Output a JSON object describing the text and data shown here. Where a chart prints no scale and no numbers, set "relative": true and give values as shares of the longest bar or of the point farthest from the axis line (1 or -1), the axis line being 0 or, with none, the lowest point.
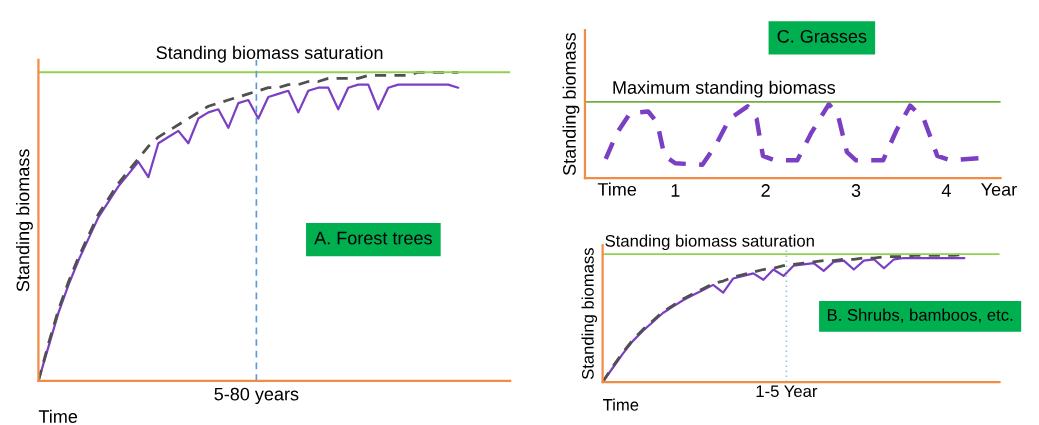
{
  "chart_data": [
    {
      "type": "line",
      "relative": true,
      "xlabel": "Time",
      "ylabel": "Standing biomass",
      "categories": [
        null,
        null,
        null,
        null,
        null,
        null,
        null,
        null,
        null,
        null,
        null,
        null,
        null,
        null,
        null,
        null,
        null,
        null,
        null,
        null,
        null,
        null,
        null,
        null,
        null,
        null,
        null,
        null,
        null,
        null,
        null,
        null,
        null,
        null,
        null,
        null,
        null,
        null,
        null,
        null,
        null,
        null,
        null
      ],
      "series": [
        {
          "color": "#7b3fc4",
          "line_style": "solid",
          "values": [
            0,
            0.11,
            0.22,
            0.31,
            0.39,
            0.46,
            0.53,
            0.58,
            0.63,
            0.67,
            0.71,
            0.66,
            0.77,
            0.79,
            0.81,
            0.77,
            0.85,
            0.87,
            0.88,
            0.82,
            0.9,
            0.91,
            0.85,
            0.92,
            0.93,
            0.94,
            0.87,
            0.94,
            0.95,
            0.95,
            0.88,
            0.95,
            0.96,
            0.96,
            0.88,
            0.95,
            0.96,
            0.96,
            0.96,
            0.96,
            0.96,
            0.96,
            0.95
          ]
        },
        {
          "color": "#505050",
          "line_style": "dashed",
          "values": [
            0,
            0.12,
            0.23,
            0.32,
            0.4,
            0.47,
            0.54,
            0.59,
            0.64,
            0.68,
            0.72,
            0.76,
            0.79,
            0.81,
            0.83,
            0.85,
            0.87,
            0.89,
            0.9,
            0.91,
            0.92,
            0.93,
            0.94,
            0.95,
            0.95,
            0.96,
            0.96,
            0.97,
            0.97,
            0.98,
            0.98,
            0.98,
            0.98,
            0.99,
            0.99,
            0.99,
            0.99,
            0.99,
            1.0,
            1.0,
            1.0,
            1.0,
            1.0
          ]
        }
      ],
      "ref_lines": [
        {
          "axis": "y",
          "value": 1.0,
          "label": "Standing biomass saturation",
          "color": "#92d050",
          "line_style": "solid"
        }
      ],
      "annotations": [
        "A. Forest trees",
        "5-80 years"
      ]
    },
    {
      "type": "line",
      "relative": true,
      "title": "C. Grasses",
      "xlabel": "Year",
      "ylabel": "Standing biomass",
      "xlim": [
        0,
        4.6
      ],
      "xticks": [
        1,
        2,
        3,
        4
      ],
      "series": [
        {
          "color": "#7b3fc4",
          "line_style": "dashed",
          "x": [
            0.23,
            0.35,
            0.5,
            0.7,
            0.8,
            0.88,
            1.0,
            1.3,
            1.45,
            1.6,
            1.8,
            1.9,
            1.97,
            2.1,
            2.35,
            2.5,
            2.7,
            2.8,
            2.9,
            3.0,
            3.3,
            3.45,
            3.6,
            3.75,
            3.9,
            4.05,
            4.37
          ],
          "values": [
            0.26,
            0.6,
            0.88,
            0.9,
            0.75,
            0.3,
            0.2,
            0.18,
            0.45,
            0.8,
            0.97,
            0.8,
            0.3,
            0.24,
            0.24,
            0.6,
            1.0,
            0.85,
            0.35,
            0.24,
            0.24,
            0.65,
            0.98,
            0.8,
            0.3,
            0.24,
            0.27
          ]
        }
      ],
      "ref_lines": [
        {
          "axis": "y",
          "value": 1.03,
          "label": "Maximum standing biomass",
          "color": "#70b040",
          "line_style": "solid"
        }
      ],
      "annotations": [
        "Time"
      ]
    },
    {
      "type": "line",
      "relative": true,
      "xlabel": "Time",
      "ylabel": "Standing biomass",
      "categories": [
        null,
        null,
        null,
        null,
        null,
        null,
        null,
        null,
        null,
        null,
        null,
        null,
        null,
        null,
        null,
        null,
        null,
        null,
        null,
        null,
        null,
        null,
        null,
        null,
        null,
        null,
        null,
        null,
        null,
        null,
        null,
        null,
        null,
        null,
        null,
        null,
        null
      ],
      "series": [
        {
          "color": "#7b3fc4",
          "line_style": "solid",
          "values": [
            0,
            0.11,
            0.22,
            0.32,
            0.4,
            0.47,
            0.54,
            0.59,
            0.64,
            0.68,
            0.72,
            0.76,
            0.7,
            0.81,
            0.83,
            0.85,
            0.8,
            0.88,
            0.83,
            0.91,
            0.92,
            0.93,
            0.87,
            0.94,
            0.95,
            0.88,
            0.95,
            0.96,
            0.89,
            0.96,
            0.97,
            0.97,
            0.97,
            0.97,
            0.97,
            0.97,
            0.97
          ]
        },
        {
          "color": "#505050",
          "line_style": "dashed",
          "values": [
            0,
            0.12,
            0.23,
            0.33,
            0.41,
            0.48,
            0.55,
            0.6,
            0.65,
            0.69,
            0.73,
            0.77,
            0.79,
            0.82,
            0.84,
            0.86,
            0.88,
            0.89,
            0.91,
            0.92,
            0.93,
            0.94,
            0.95,
            0.95,
            0.96,
            0.96,
            0.97,
            0.97,
            0.98,
            0.98,
            0.98,
            0.99,
            0.99,
            0.99,
            0.99,
            0.99,
            1.0
          ]
        }
      ],
      "ref_lines": [
        {
          "axis": "y",
          "value": 1.0,
          "label": "Standing biomass saturation",
          "color": "#92d050",
          "line_style": "solid"
        }
      ],
      "annotations": [
        "B. Shrubs, bamboos, etc.",
        "1-5 Year"
      ]
    }
  ]
}
